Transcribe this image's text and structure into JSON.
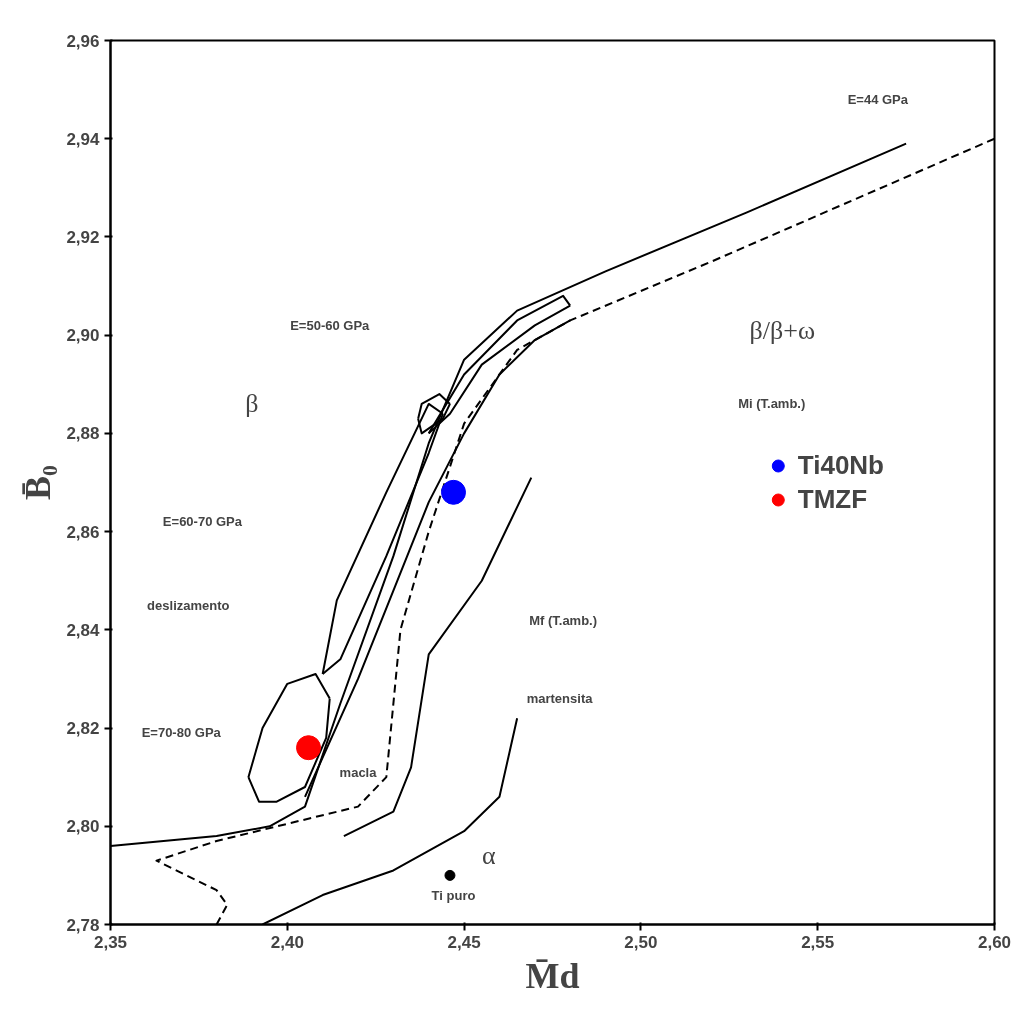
{
  "chart_data": {
    "type": "line",
    "xlabel": "M̄d",
    "ylabel": "B̄₀",
    "xlim": [
      2.35,
      2.6
    ],
    "ylim": [
      2.78,
      2.96
    ],
    "xticks": [
      {
        "value": 2.35,
        "label": "2,35"
      },
      {
        "value": 2.4,
        "label": "2,40"
      },
      {
        "value": 2.45,
        "label": "2,45"
      },
      {
        "value": 2.5,
        "label": "2,50"
      },
      {
        "value": 2.55,
        "label": "2,55"
      },
      {
        "value": 2.6,
        "label": "2,60"
      }
    ],
    "yticks": [
      {
        "value": 2.78,
        "label": "2,78"
      },
      {
        "value": 2.8,
        "label": "2,80"
      },
      {
        "value": 2.82,
        "label": "2,82"
      },
      {
        "value": 2.84,
        "label": "2,84"
      },
      {
        "value": 2.86,
        "label": "2,86"
      },
      {
        "value": 2.88,
        "label": "2,88"
      },
      {
        "value": 2.9,
        "label": "2,90"
      },
      {
        "value": 2.92,
        "label": "2,92"
      },
      {
        "value": 2.94,
        "label": "2,94"
      },
      {
        "value": 2.96,
        "label": "2,96"
      }
    ],
    "grid": false,
    "legend": "right",
    "series": [
      {
        "color": "#000000",
        "line_style": "solid",
        "x": [
          2.35,
          2.38,
          2.395,
          2.405,
          2.415,
          2.43,
          2.44,
          2.45,
          2.465,
          2.49,
          2.53,
          2.575
        ],
        "values": [
          2.796,
          2.798,
          2.8,
          2.804,
          2.825,
          2.855,
          2.878,
          2.895,
          2.905,
          2.913,
          2.925,
          2.939
        ]
      },
      {
        "color": "#000000",
        "line_style": "dashed",
        "x": [
          2.38,
          2.383,
          2.38,
          2.363,
          2.38,
          2.42,
          2.428,
          2.432,
          2.44,
          2.45,
          2.465,
          2.48,
          2.52,
          2.6
        ],
        "values": [
          2.78,
          2.784,
          2.787,
          2.793,
          2.797,
          2.804,
          2.81,
          2.84,
          2.86,
          2.882,
          2.897,
          2.903,
          2.915,
          2.94
        ]
      },
      {
        "color": "#000000",
        "line_style": "solid",
        "x": [
          2.405,
          2.42,
          2.43,
          2.44,
          2.45,
          2.46,
          2.47,
          2.48
        ],
        "values": [
          2.806,
          2.83,
          2.848,
          2.866,
          2.88,
          2.892,
          2.899,
          2.903
        ]
      },
      {
        "color": "#000000",
        "line_style": "solid",
        "x": [
          2.416,
          2.43,
          2.435,
          2.44,
          2.455,
          2.469
        ],
        "values": [
          2.798,
          2.803,
          2.812,
          2.835,
          2.85,
          2.871
        ]
      },
      {
        "color": "#000000",
        "line_style": "solid",
        "x": [
          2.393,
          2.41,
          2.43,
          2.45,
          2.46,
          2.465
        ],
        "values": [
          2.78,
          2.786,
          2.791,
          2.799,
          2.806,
          2.822
        ]
      },
      {
        "color": "#000000",
        "line_style": "solid",
        "x": [
          2.389,
          2.393,
          2.4,
          2.408,
          2.412
        ],
        "values": [
          2.81,
          2.82,
          2.829,
          2.831,
          2.826
        ]
      },
      {
        "color": "#000000",
        "line_style": "solid",
        "x": [
          2.389,
          2.392,
          2.397,
          2.405,
          2.411,
          2.412
        ],
        "values": [
          2.81,
          2.805,
          2.805,
          2.808,
          2.818,
          2.826
        ]
      },
      {
        "color": "#000000",
        "line_style": "solid",
        "x": [
          2.41,
          2.414,
          2.428,
          2.44,
          2.444
        ],
        "values": [
          2.831,
          2.846,
          2.868,
          2.886,
          2.884
        ]
      },
      {
        "color": "#000000",
        "line_style": "solid",
        "x": [
          2.41,
          2.415,
          2.428,
          2.44,
          2.444
        ],
        "values": [
          2.831,
          2.834,
          2.855,
          2.876,
          2.884
        ]
      },
      {
        "color": "#000000",
        "line_style": "solid",
        "x": [
          2.437,
          2.438,
          2.443,
          2.446
        ],
        "values": [
          2.883,
          2.886,
          2.888,
          2.886
        ]
      },
      {
        "color": "#000000",
        "line_style": "solid",
        "x": [
          2.437,
          2.438,
          2.444,
          2.446
        ],
        "values": [
          2.883,
          2.88,
          2.883,
          2.886
        ]
      },
      {
        "color": "#000000",
        "line_style": "solid",
        "x": [
          2.44,
          2.45,
          2.465,
          2.478,
          2.48
        ],
        "values": [
          2.88,
          2.892,
          2.903,
          2.908,
          2.906
        ]
      },
      {
        "color": "#000000",
        "line_style": "solid",
        "x": [
          2.44,
          2.446,
          2.455,
          2.47,
          2.48
        ],
        "values": [
          2.88,
          2.884,
          2.894,
          2.902,
          2.906
        ]
      },
      {
        "type": "scatter",
        "name": "Ti40Nb",
        "color": "#0000ff",
        "marker": "circle",
        "x": [
          2.447
        ],
        "values": [
          2.868
        ]
      },
      {
        "type": "scatter",
        "name": "TMZF",
        "color": "#ff0000",
        "marker": "circle",
        "x": [
          2.406
        ],
        "values": [
          2.816
        ]
      },
      {
        "type": "scatter",
        "color": "#000000",
        "marker": "circle",
        "x": [
          2.446
        ],
        "values": [
          2.79
        ]
      }
    ],
    "annotations": [
      "E=44 GPa",
      "E=50-60 GPa",
      "β",
      "β/β+ω",
      "Mi (T.amb.)",
      "E=60-70 GPa",
      "deslizamento",
      "Mf (T.amb.)",
      "martensita",
      "E=70-80 GPa",
      "macla",
      "α",
      "Ti puro"
    ]
  }
}
